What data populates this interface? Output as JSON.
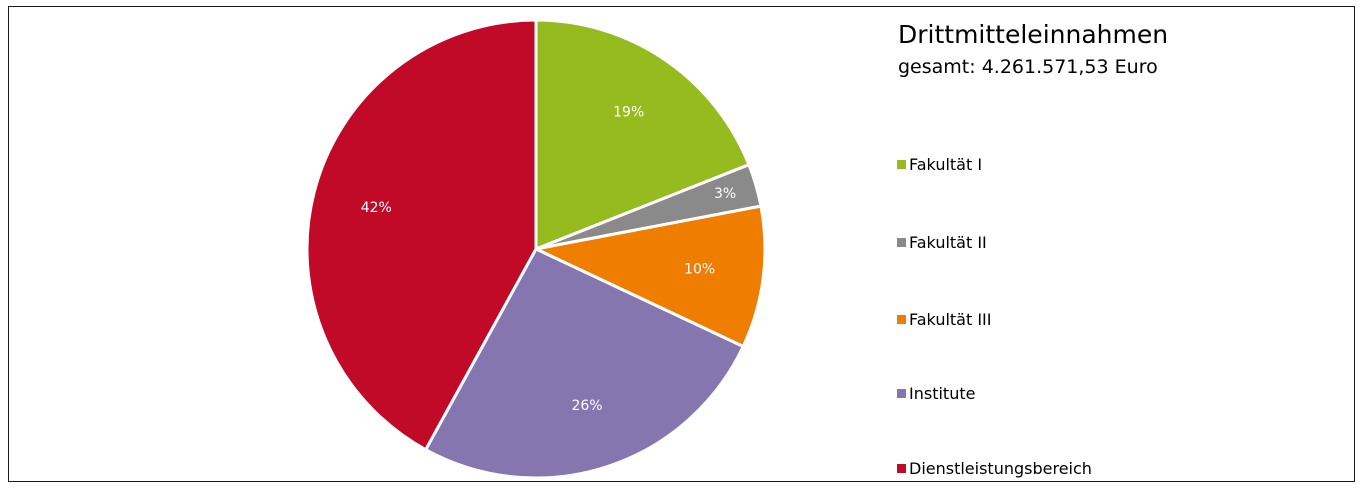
{
  "chart_data": {
    "type": "pie",
    "title": "Drittmitteleinnahmen",
    "subtitle": "gesamt: 4.261.571,53 Euro",
    "legend_position": "right",
    "slices": [
      {
        "label": "Fakultät I",
        "value": 19,
        "display": "19%",
        "color": "#95bb1f"
      },
      {
        "label": "Fakultät II",
        "value": 3,
        "display": "3%",
        "color": "#8a8a8a"
      },
      {
        "label": "Fakultät III",
        "value": 10,
        "display": "10%",
        "color": "#ef7d00"
      },
      {
        "label": "Institute",
        "value": 26,
        "display": "26%",
        "color": "#8576b0"
      },
      {
        "label": "Dienstleistungsbereich",
        "value": 42,
        "display": "42%",
        "color": "#c00a27"
      }
    ]
  }
}
